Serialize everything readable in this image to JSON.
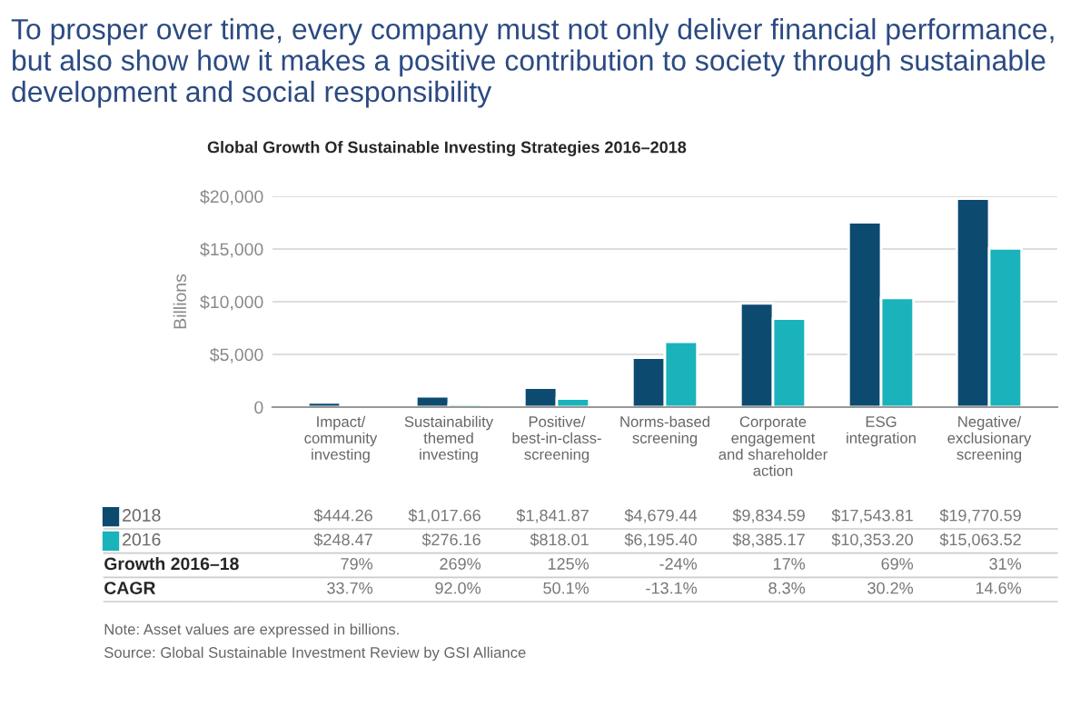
{
  "chart_data": {
    "type": "bar",
    "title": "To prosper over time, every company must not only deliver financial performance, but also show how it makes a positive contribution to society through sustainable development and social responsibility",
    "subtitle": "Global Growth Of Sustainable Investing Strategies 2016–2018",
    "ylabel": "Billions",
    "categories": [
      "Impact/\ncommunity\ninvesting",
      "Sustainability\nthemed\ninvesting",
      "Positive/\nbest-in-class-\nscreening",
      "Norms-based\nscreening",
      "Corporate\nengagement\nand shareholder\naction",
      "ESG\nintegration",
      "Negative/\nexclusionary\nscreening"
    ],
    "series": [
      {
        "name": "2018",
        "color": "#0d4a70",
        "values": [
          444.26,
          1017.66,
          1841.87,
          4679.44,
          9834.59,
          17543.81,
          19770.59
        ],
        "value_labels": [
          "$444.26",
          "$1,017.66",
          "$1,841.87",
          "$4,679.44",
          "$9,834.59",
          "$17,543.81",
          "$19,770.59"
        ]
      },
      {
        "name": "2016",
        "color": "#1ab3bb",
        "values": [
          248.47,
          276.16,
          818.01,
          6195.4,
          8385.17,
          10353.2,
          15063.52
        ],
        "value_labels": [
          "$248.47",
          "$276.16",
          "$818.01",
          "$6,195.40",
          "$8,385.17",
          "$10,353.20",
          "$15,063.52"
        ]
      }
    ],
    "ylim": [
      0,
      20000
    ],
    "yticks": [
      0,
      {
        "value": 5000,
        "label": "$5,000"
      },
      {
        "value": 10000,
        "label": "$10,000"
      },
      {
        "value": 15000,
        "label": "$15,000"
      },
      {
        "value": 20000,
        "label": "$20,000"
      }
    ],
    "grid": "y",
    "legend": "bottom left",
    "annotations": [
      "Growth 2016–18",
      "79%",
      "269%",
      "125%",
      "-24%",
      "17%",
      "69%",
      "31%",
      "CAGR",
      "33.7%",
      "92.0%",
      "50.1%",
      "-13.1%",
      "8.3%",
      "30.2%",
      "14.6%",
      "Note: Asset values are expressed in billions.",
      "Source: Global Sustainable Investment Review by GSI Alliance"
    ]
  }
}
